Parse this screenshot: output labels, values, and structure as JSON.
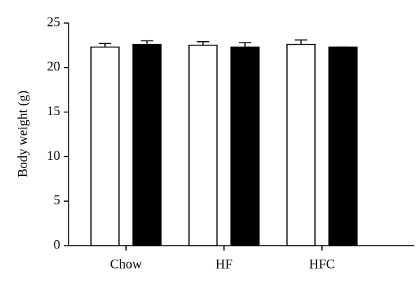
{
  "chart_data": {
    "type": "bar",
    "y_label": "Body weight (g)",
    "categories": [
      "Chow",
      "HF",
      "HFC"
    ],
    "series": [
      {
        "color": "#ffffff",
        "values": [
          22.3,
          22.5,
          22.6
        ],
        "errors": [
          0.4,
          0.4,
          0.5
        ]
      },
      {
        "color": "#000000",
        "values": [
          22.6,
          22.3,
          22.3
        ],
        "errors": [
          0.4,
          0.5,
          0
        ]
      }
    ],
    "ylim": [
      0,
      25
    ],
    "yticks": [
      0,
      5,
      10,
      15,
      20,
      25
    ],
    "grid": false
  }
}
